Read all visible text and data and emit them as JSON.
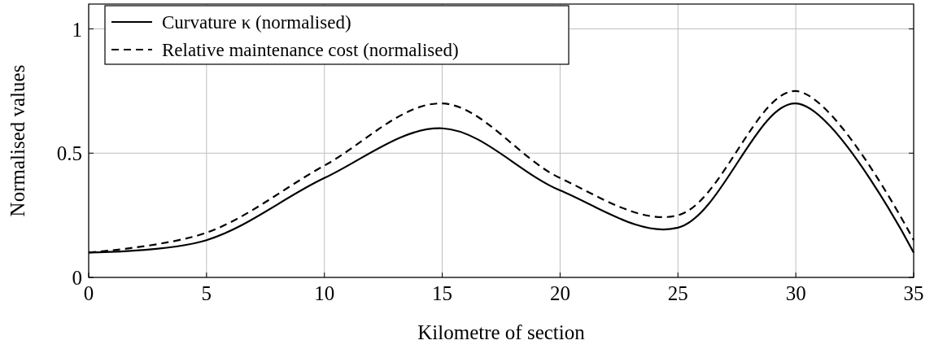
{
  "chart_data": {
    "type": "line",
    "xlabel": "Kilometre of section",
    "ylabel": "Normalised values",
    "x": [
      0,
      5,
      10,
      15,
      20,
      25,
      30,
      35
    ],
    "series": [
      {
        "name": "Curvature κ (normalised)",
        "color": "#000000",
        "line_style": "solid",
        "values": [
          0.1,
          0.15,
          0.4,
          0.6,
          0.35,
          0.2,
          0.7,
          0.1
        ]
      },
      {
        "name": "Relative maintenance cost (normalised)",
        "color": "#000000",
        "line_style": "dashed",
        "values": [
          0.1,
          0.18,
          0.45,
          0.7,
          0.4,
          0.25,
          0.75,
          0.15
        ]
      }
    ],
    "xlim": [
      0,
      35
    ],
    "xticks": [
      0,
      5,
      10,
      15,
      20,
      25,
      30,
      35
    ],
    "ylim": [
      0,
      1.1
    ],
    "yticks": [
      0,
      0.5,
      1
    ],
    "grid": true,
    "legend": "top left",
    "marker": "none"
  }
}
